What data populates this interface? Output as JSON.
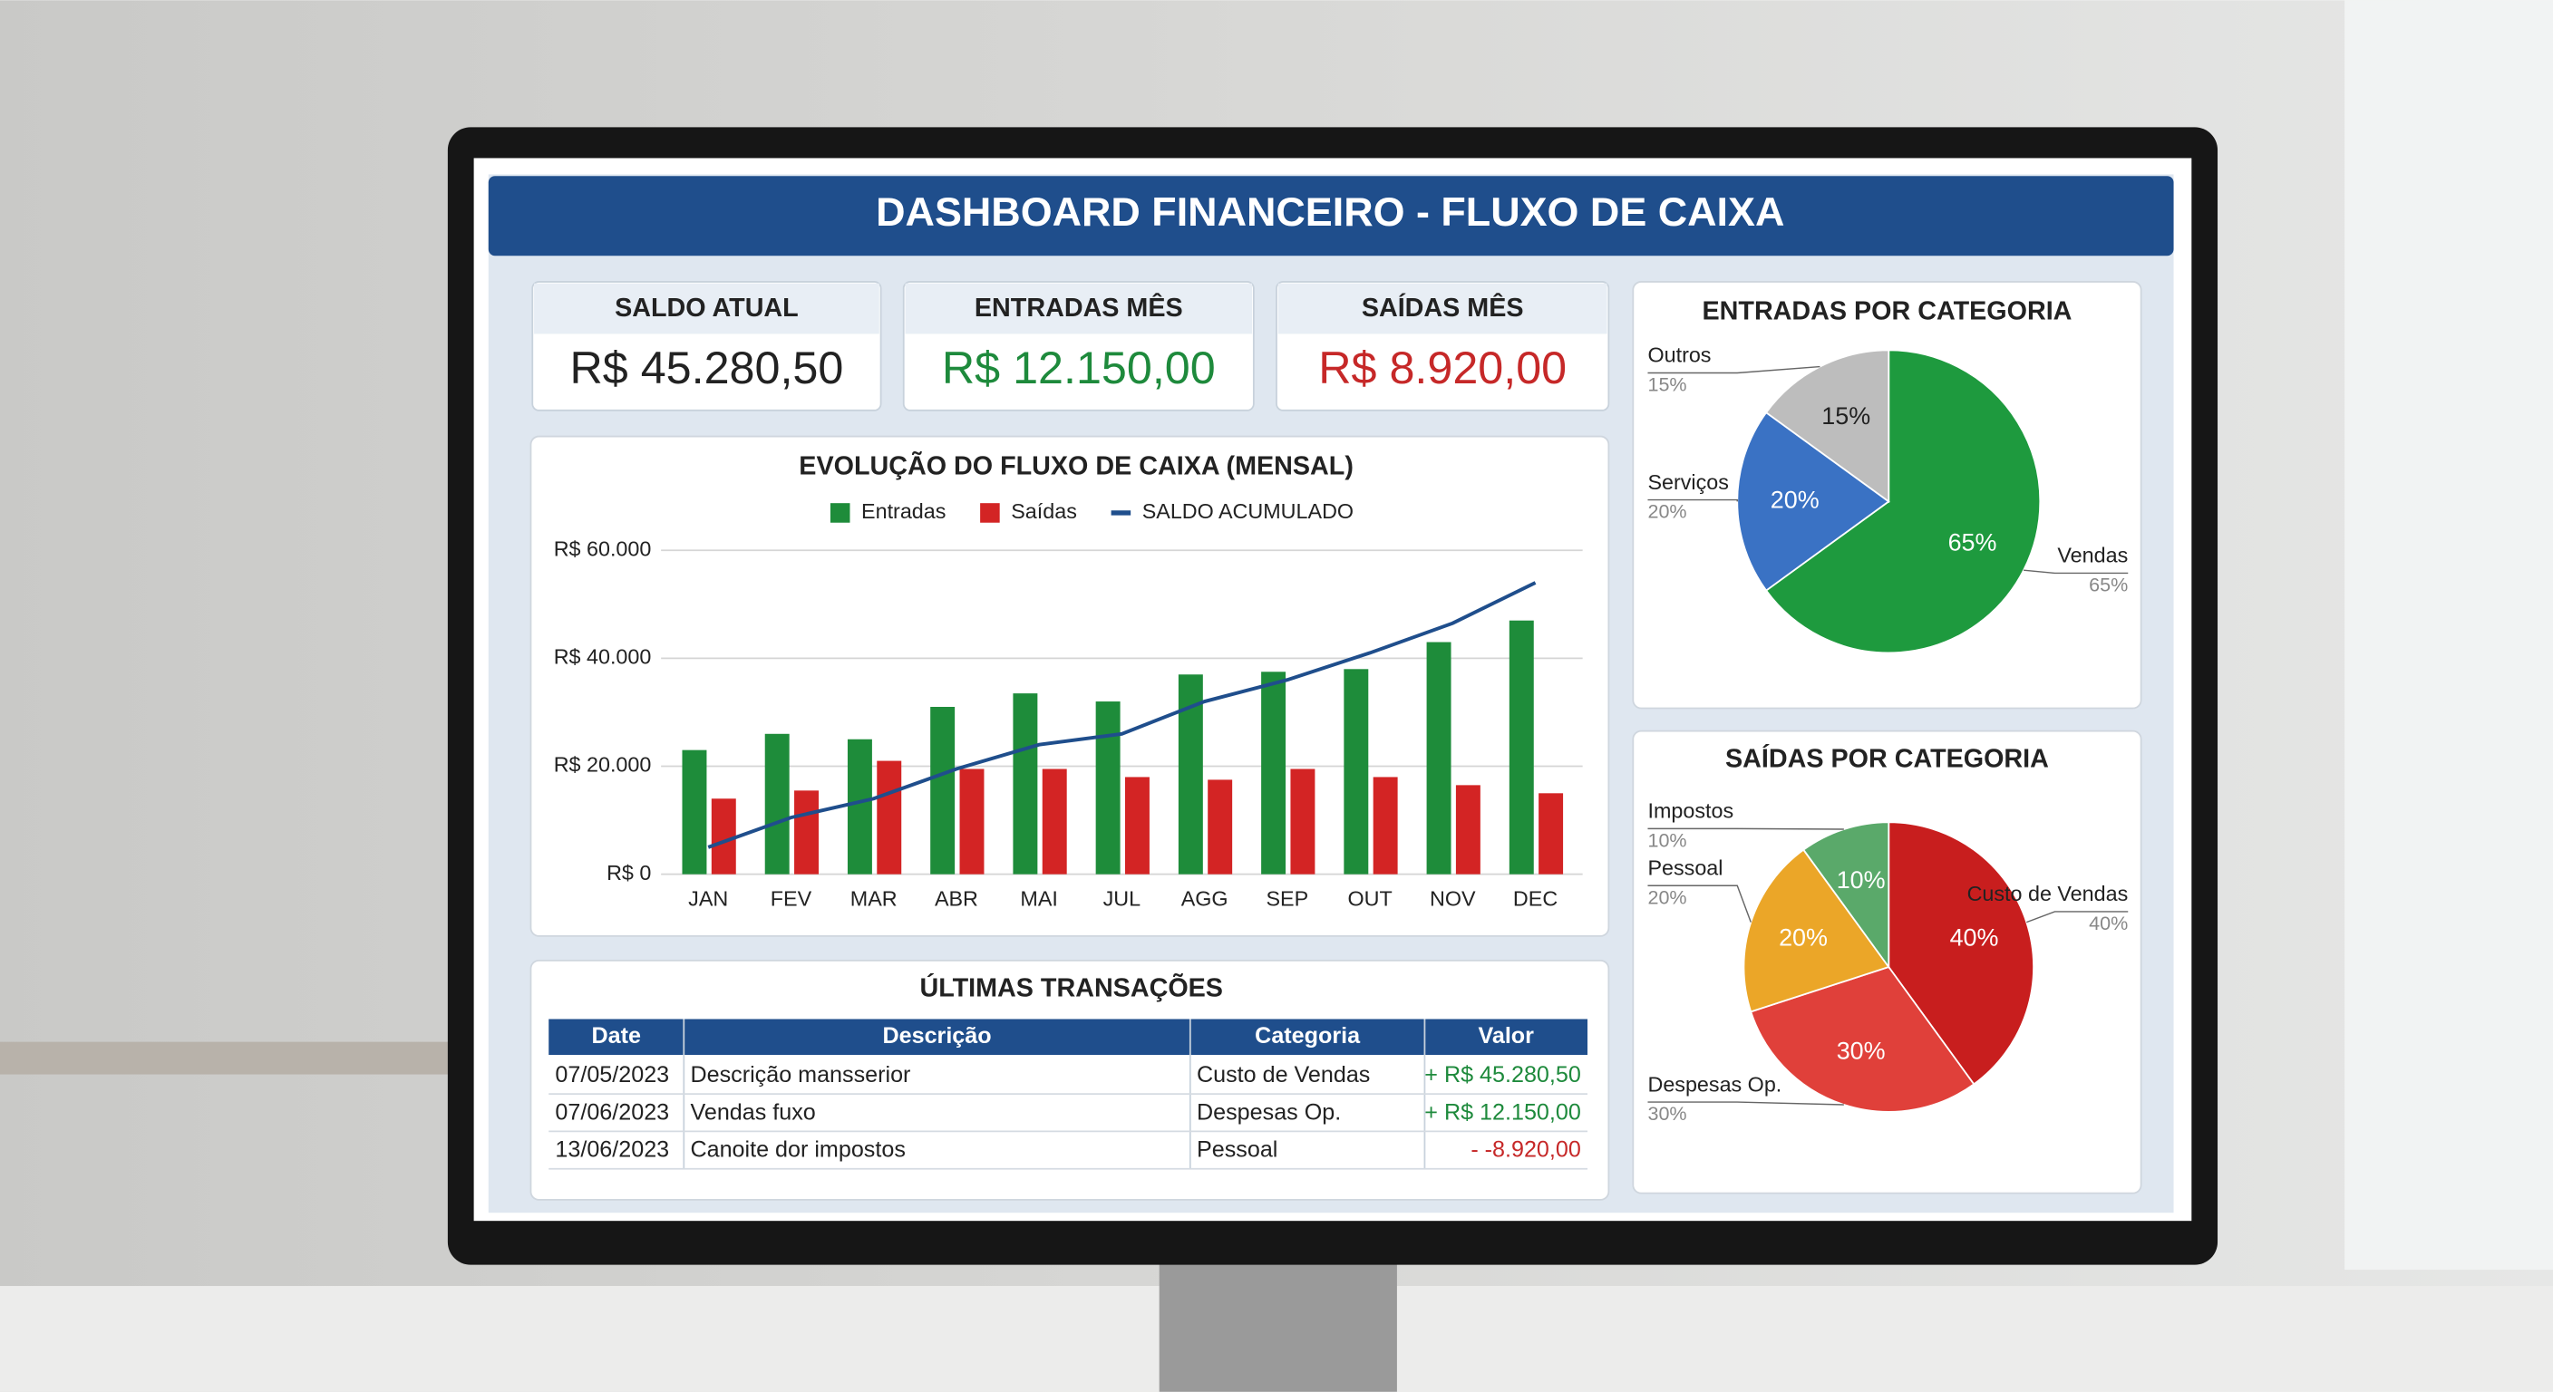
{
  "header": {
    "title": "DASHBOARD FINANCEIRO - FLUXO DE CAIXA"
  },
  "kpis": [
    {
      "label": "SALDO ATUAL",
      "value": "R$ 45.280,50",
      "color": "#222222"
    },
    {
      "label": "ENTRADAS MÊS",
      "value": "R$ 12.150,00",
      "color": "#1e8a3c"
    },
    {
      "label": "SAÍDAS MÊS",
      "value": "R$ 8.920,00",
      "color": "#c62828"
    }
  ],
  "chart_data": [
    {
      "type": "bar",
      "title": "EVOLUÇÃO DO FLUXO DE CAIXA (MENSAL)",
      "categories": [
        "JAN",
        "FEV",
        "MAR",
        "ABR",
        "MAI",
        "JUL",
        "AGG",
        "SEP",
        "OUT",
        "NOV",
        "DEC"
      ],
      "series": [
        {
          "name": "Entradas",
          "color": "#1e8c3a",
          "values": [
            23000,
            26000,
            25000,
            31000,
            33500,
            32000,
            37000,
            37500,
            38000,
            43000,
            47000
          ]
        },
        {
          "name": "Saídas",
          "color": "#d32424",
          "values": [
            14000,
            15500,
            21000,
            19500,
            19500,
            18000,
            17500,
            19500,
            18000,
            16500,
            15000
          ]
        },
        {
          "name": "SALDO ACUMULADO",
          "color": "#1f4e8c",
          "type": "line",
          "values": [
            5000,
            10500,
            14000,
            19500,
            24000,
            26000,
            32000,
            36000,
            41000,
            46500,
            54000
          ]
        }
      ],
      "ylim": [
        0,
        60000
      ],
      "yticks": [
        {
          "value": 0,
          "label": "R$ 0"
        },
        {
          "value": 20000,
          "label": "R$ 20.000"
        },
        {
          "value": 40000,
          "label": "R$ 40.000"
        },
        {
          "value": 60000,
          "label": "R$ 60.000"
        }
      ],
      "grid": true
    },
    {
      "type": "pie",
      "title": "ENTRADAS POR CATEGORIA",
      "categories": [
        "Vendas",
        "Serviços",
        "Outros"
      ],
      "values": [
        65,
        20,
        15
      ],
      "value_labels": [
        "65%",
        "20%",
        "15%"
      ],
      "colors": [
        "#1e9a3e",
        "#3a72c4",
        "#bdbdbd"
      ]
    },
    {
      "type": "pie",
      "title": "SAÍDAS POR CATEGORIA",
      "categories": [
        "Custo de Vendas",
        "Despesas Op.",
        "Pessoal",
        "Impostos"
      ],
      "values": [
        40,
        30,
        20,
        10
      ],
      "value_labels": [
        "40%",
        "30%",
        "20%",
        "10%"
      ],
      "colors": [
        "#c81e1e",
        "#e0403a",
        "#eba628",
        "#5aa96a"
      ]
    }
  ],
  "table": {
    "title": "ÚLTIMAS TRANSAÇÕES",
    "columns": [
      "Date",
      "Descrição",
      "Categoria",
      "Valor"
    ],
    "rows": [
      [
        "07/05/2023",
        "Descrição mansserior",
        "Custo de Vendas",
        "+ R$ 45.280,50"
      ],
      [
        "07/06/2023",
        "Vendas fuxo",
        "Despesas Op.",
        "+ R$ 12.150,00"
      ],
      [
        "13/06/2023",
        "Canoite dor impostos",
        "Pessoal",
        "- -8.920,00"
      ]
    ]
  }
}
